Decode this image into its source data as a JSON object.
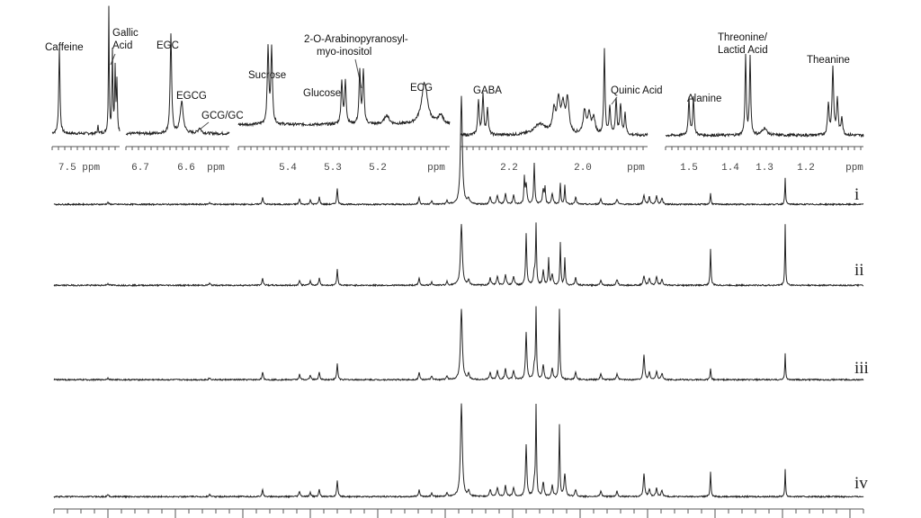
{
  "insets": [
    {
      "labels": [
        [
          "Caffeine"
        ],
        [
          "Gallic",
          "Acid"
        ]
      ],
      "ticks": [
        "7.5 ppm"
      ]
    },
    {
      "labels": [
        [
          "EGC"
        ],
        [
          "EGCG"
        ],
        [
          "GCG/GC"
        ]
      ],
      "ticks": [
        "6.7",
        "6.6",
        "ppm"
      ]
    },
    {
      "labels": [
        [
          "Sucrose"
        ],
        [
          "Glucose"
        ],
        [
          "2-O-Arabinopyranosyl-",
          "myo-inositol"
        ],
        [
          "ECG"
        ]
      ],
      "ticks": [
        "5.4",
        "5.3",
        "5.2",
        "ppm"
      ]
    },
    {
      "labels": [
        [
          "GABA"
        ],
        [
          "Quinic Acid"
        ]
      ],
      "ticks": [
        "2.2",
        "2.0",
        "ppm"
      ]
    },
    {
      "labels": [
        [
          "Alanine"
        ],
        [
          "Threonine/",
          "Lactid Acid"
        ],
        [
          "Theanine"
        ]
      ],
      "ticks": [
        "1.5",
        "1.4",
        "1.3",
        "1.2",
        "ppm"
      ]
    }
  ],
  "spectra": [
    "i",
    "ii",
    "iii",
    "iv"
  ]
}
